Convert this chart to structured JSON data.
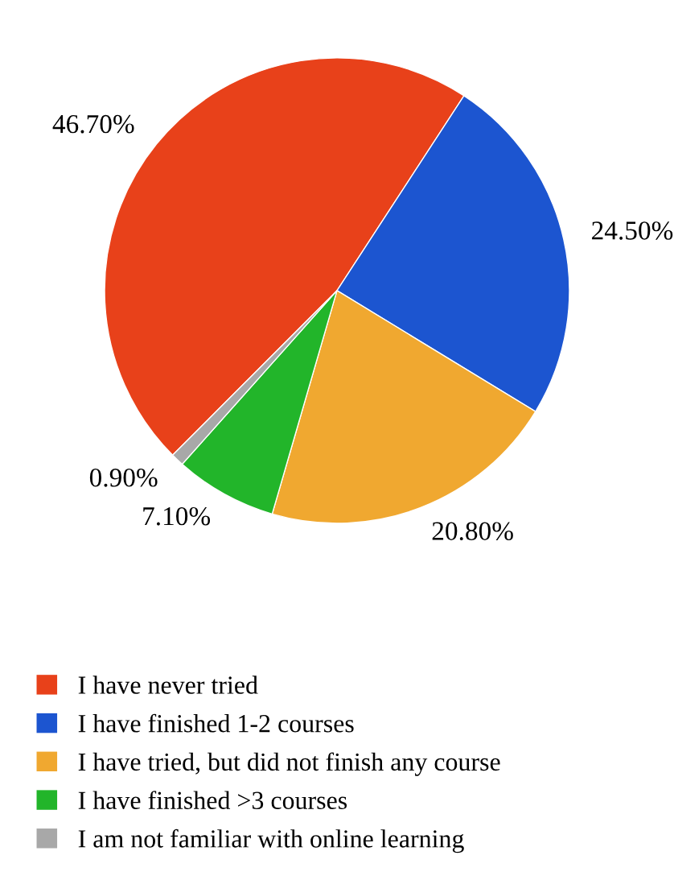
{
  "chart_data": {
    "type": "pie",
    "categories": [
      "I have never tried",
      "I have finished 1-2 courses",
      "I have tried, but did not finish any course",
      "I have finished >3 courses",
      "I am not familiar with online learning"
    ],
    "values": [
      46.7,
      24.5,
      20.8,
      7.1,
      0.9
    ],
    "value_labels": [
      "46.70%",
      "24.50%",
      "20.80%",
      "7.10%",
      "0.90%"
    ],
    "colors": [
      "#e8411a",
      "#1c55d0",
      "#f0a830",
      "#22b52a",
      "#a8a8a8"
    ],
    "legend": "bottom"
  }
}
